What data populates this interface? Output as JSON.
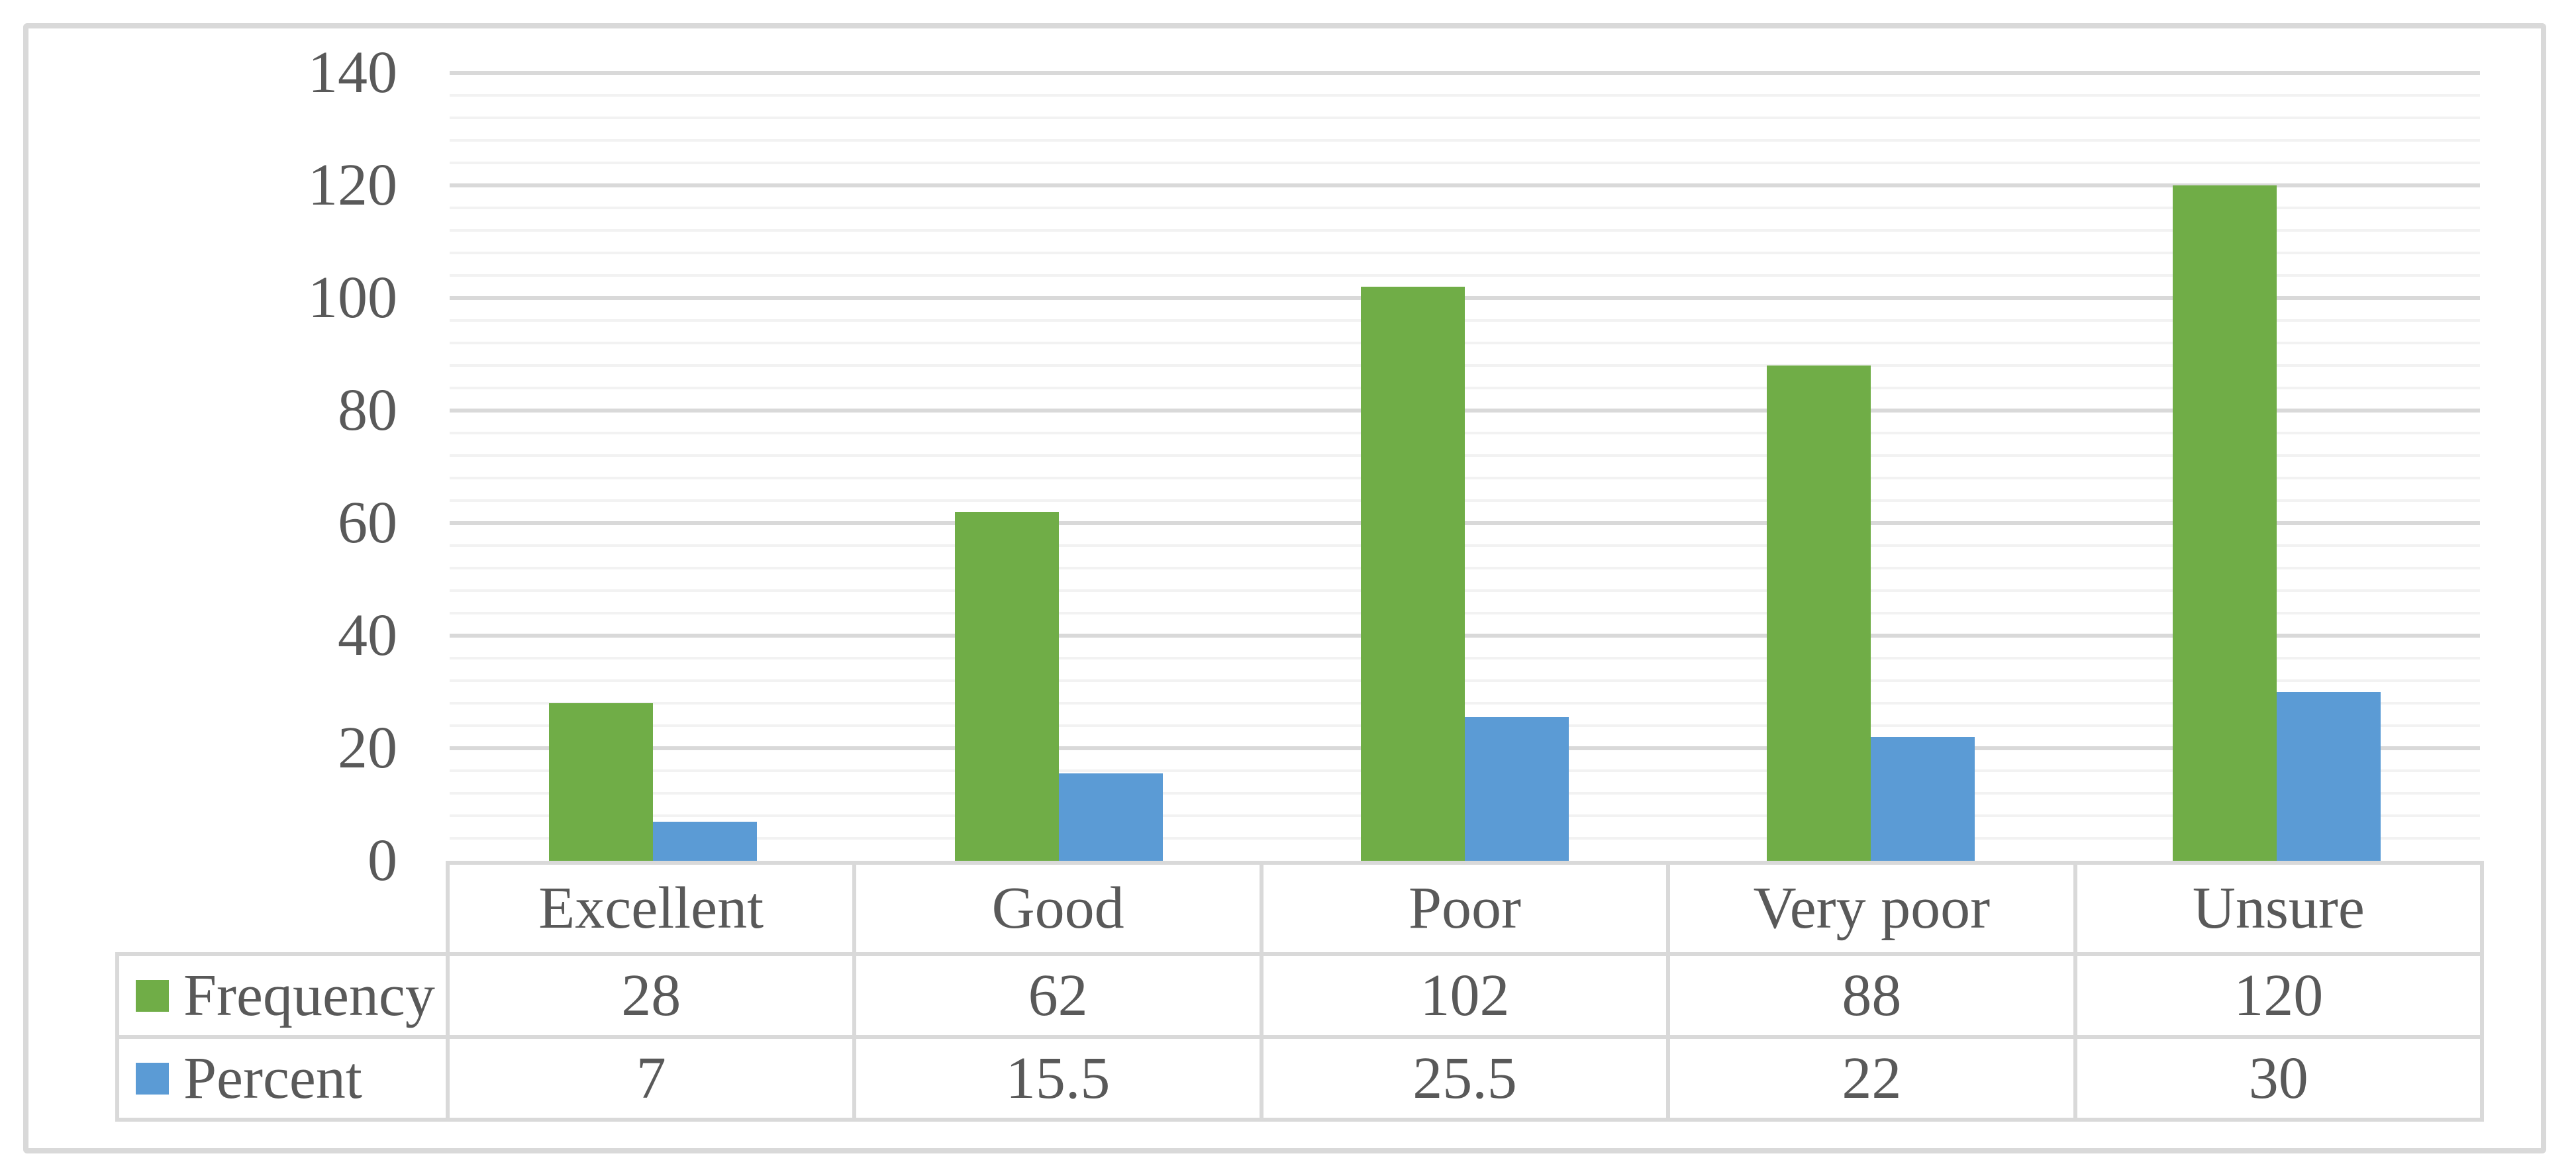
{
  "figure": {
    "kind": "clustered column chart with data table",
    "background": "#FFFFFF",
    "frame_border_color": "#D9D9D9"
  },
  "colors": {
    "frequency_series": "#70AD47",
    "percent_series": "#5B9BD5",
    "text": "#595959",
    "gridline_major": "#D9D9D9",
    "gridline_minor": "#F2F2F2",
    "table_border": "#D9D9D9"
  },
  "chart_data": {
    "type": "bar",
    "title": "",
    "xlabel": "",
    "ylabel": "",
    "categories": [
      "Excellent",
      "Good",
      "Poor",
      "Very poor",
      "Unsure"
    ],
    "series": [
      {
        "name": "Frequency",
        "color": "#70AD47",
        "values": [
          28,
          62,
          102,
          88,
          120
        ],
        "labels": [
          "28",
          "62",
          "102",
          "88",
          "120"
        ]
      },
      {
        "name": "Percent",
        "color": "#5B9BD5",
        "values": [
          7,
          15.5,
          25.5,
          22,
          30
        ],
        "labels": [
          "7",
          "15.5",
          "25.5",
          "22",
          "30"
        ]
      }
    ],
    "ylim": [
      0,
      140
    ],
    "major_unit": 20,
    "minor_unit": 4,
    "yticks": [
      0,
      20,
      40,
      60,
      80,
      100,
      120,
      140
    ],
    "ytick_labels": [
      "0",
      "20",
      "40",
      "60",
      "80",
      "100",
      "120",
      "140"
    ],
    "grid": "horizontal major and minor gridlines",
    "legend_position": "data table left column with color keys"
  }
}
